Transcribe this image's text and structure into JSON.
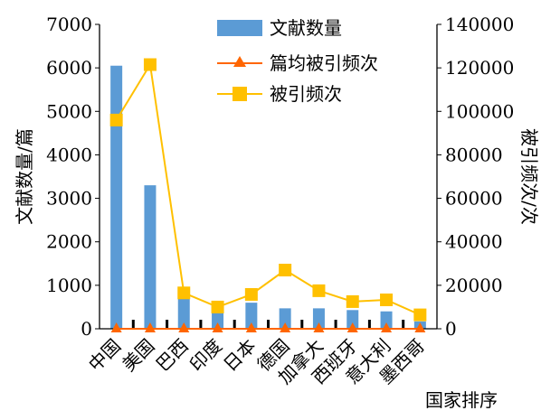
{
  "chart_data": {
    "type": "bar",
    "categories": [
      "中国",
      "美国",
      "巴西",
      "印度",
      "日本",
      "德国",
      "加拿大",
      "西班牙",
      "意大利",
      "墨西哥"
    ],
    "series": [
      {
        "name": "文献数量",
        "type": "bar",
        "axis": "left",
        "color": "#5b9bd5",
        "values": [
          6050,
          3300,
          720,
          400,
          600,
          470,
          470,
          430,
          400,
          170
        ]
      },
      {
        "name": "篇均被引频次",
        "type": "line",
        "axis": "left",
        "color": "#ff6600",
        "marker": "triangle",
        "values": [
          0,
          0,
          0,
          0,
          0,
          0,
          0,
          0,
          0,
          0
        ]
      },
      {
        "name": "被引频次",
        "type": "line",
        "axis": "right",
        "color": "#ffc000",
        "marker": "square",
        "values": [
          96000,
          121500,
          16500,
          10000,
          15800,
          27000,
          17500,
          12500,
          13300,
          6400
        ]
      }
    ],
    "xlabel": "国家排序",
    "ylabel": "文献数量/篇",
    "y2label": "被引频次/次",
    "ylim": [
      0,
      7000
    ],
    "y2lim": [
      0,
      140000
    ],
    "yticks": [
      0,
      1000,
      2000,
      3000,
      4000,
      5000,
      6000,
      7000
    ],
    "y2ticks": [
      0,
      20000,
      40000,
      60000,
      80000,
      100000,
      120000,
      140000
    ],
    "grid": false,
    "legend": "top-center"
  }
}
